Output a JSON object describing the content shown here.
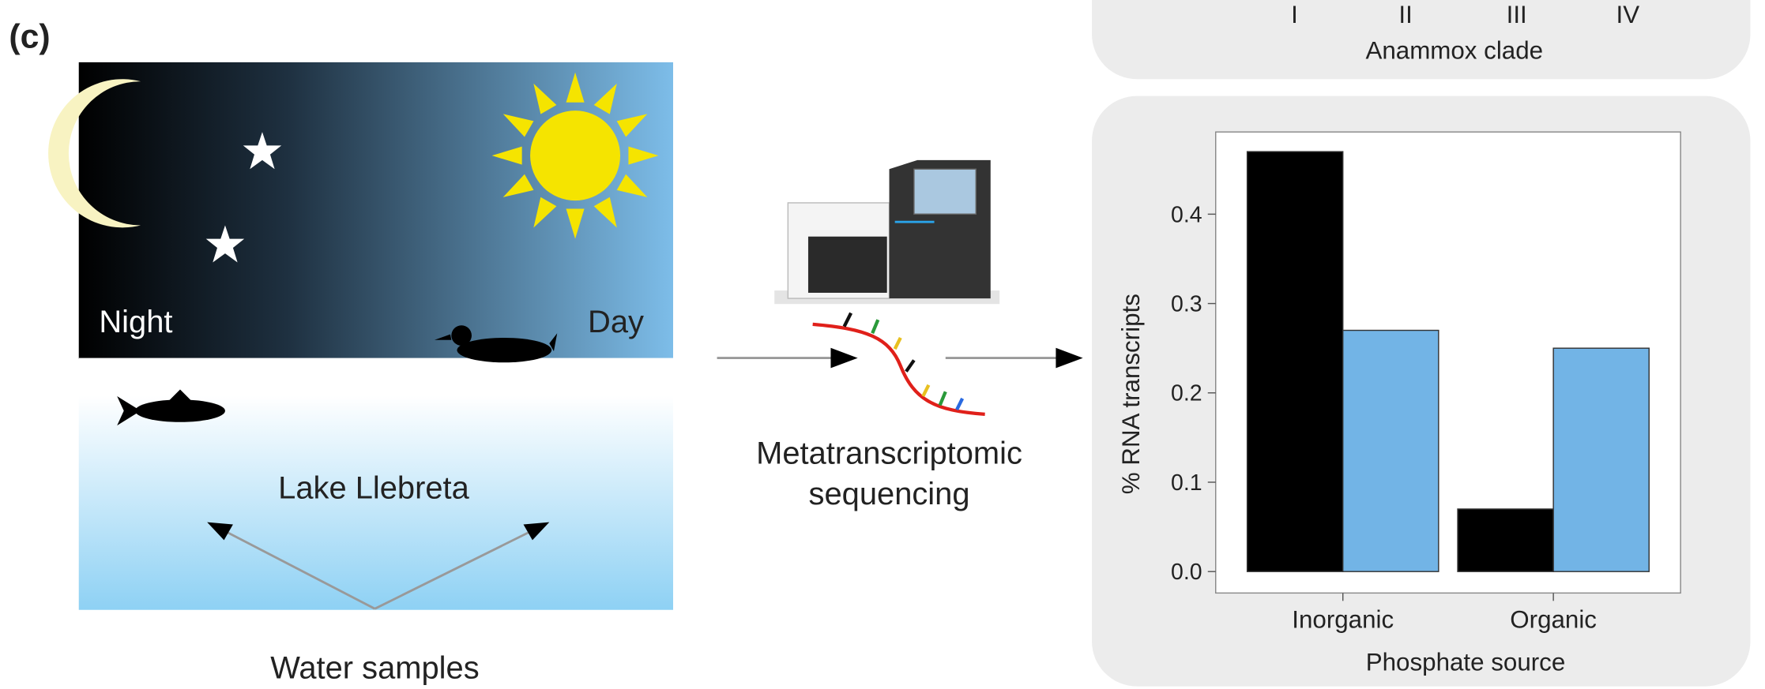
{
  "panel_label": "(c)",
  "diagram": {
    "night": "Night",
    "day": "Day",
    "lake": "Lake Llebreta",
    "samples": "Water samples",
    "method_line1": "Metatranscriptomic",
    "method_line2": "sequencing"
  },
  "top_chart": {
    "categories": [
      "I",
      "II",
      "III",
      "IV"
    ],
    "x_label": "Anammox clade"
  },
  "chart_data": {
    "type": "bar",
    "x_label": "Phosphate source",
    "y_label": "% RNA transcripts",
    "categories": [
      "Inorganic",
      "Organic"
    ],
    "series": [
      {
        "color": "#000000",
        "values": [
          0.47,
          0.07
        ]
      },
      {
        "color": "#72b4e6",
        "values": [
          0.27,
          0.25
        ]
      }
    ],
    "ylim": [
      -0.024,
      0.492
    ],
    "yticks": [
      {
        "value": 0,
        "label": "0.0"
      },
      0.1,
      0.2,
      0.3,
      0.4
    ],
    "grid": false
  }
}
